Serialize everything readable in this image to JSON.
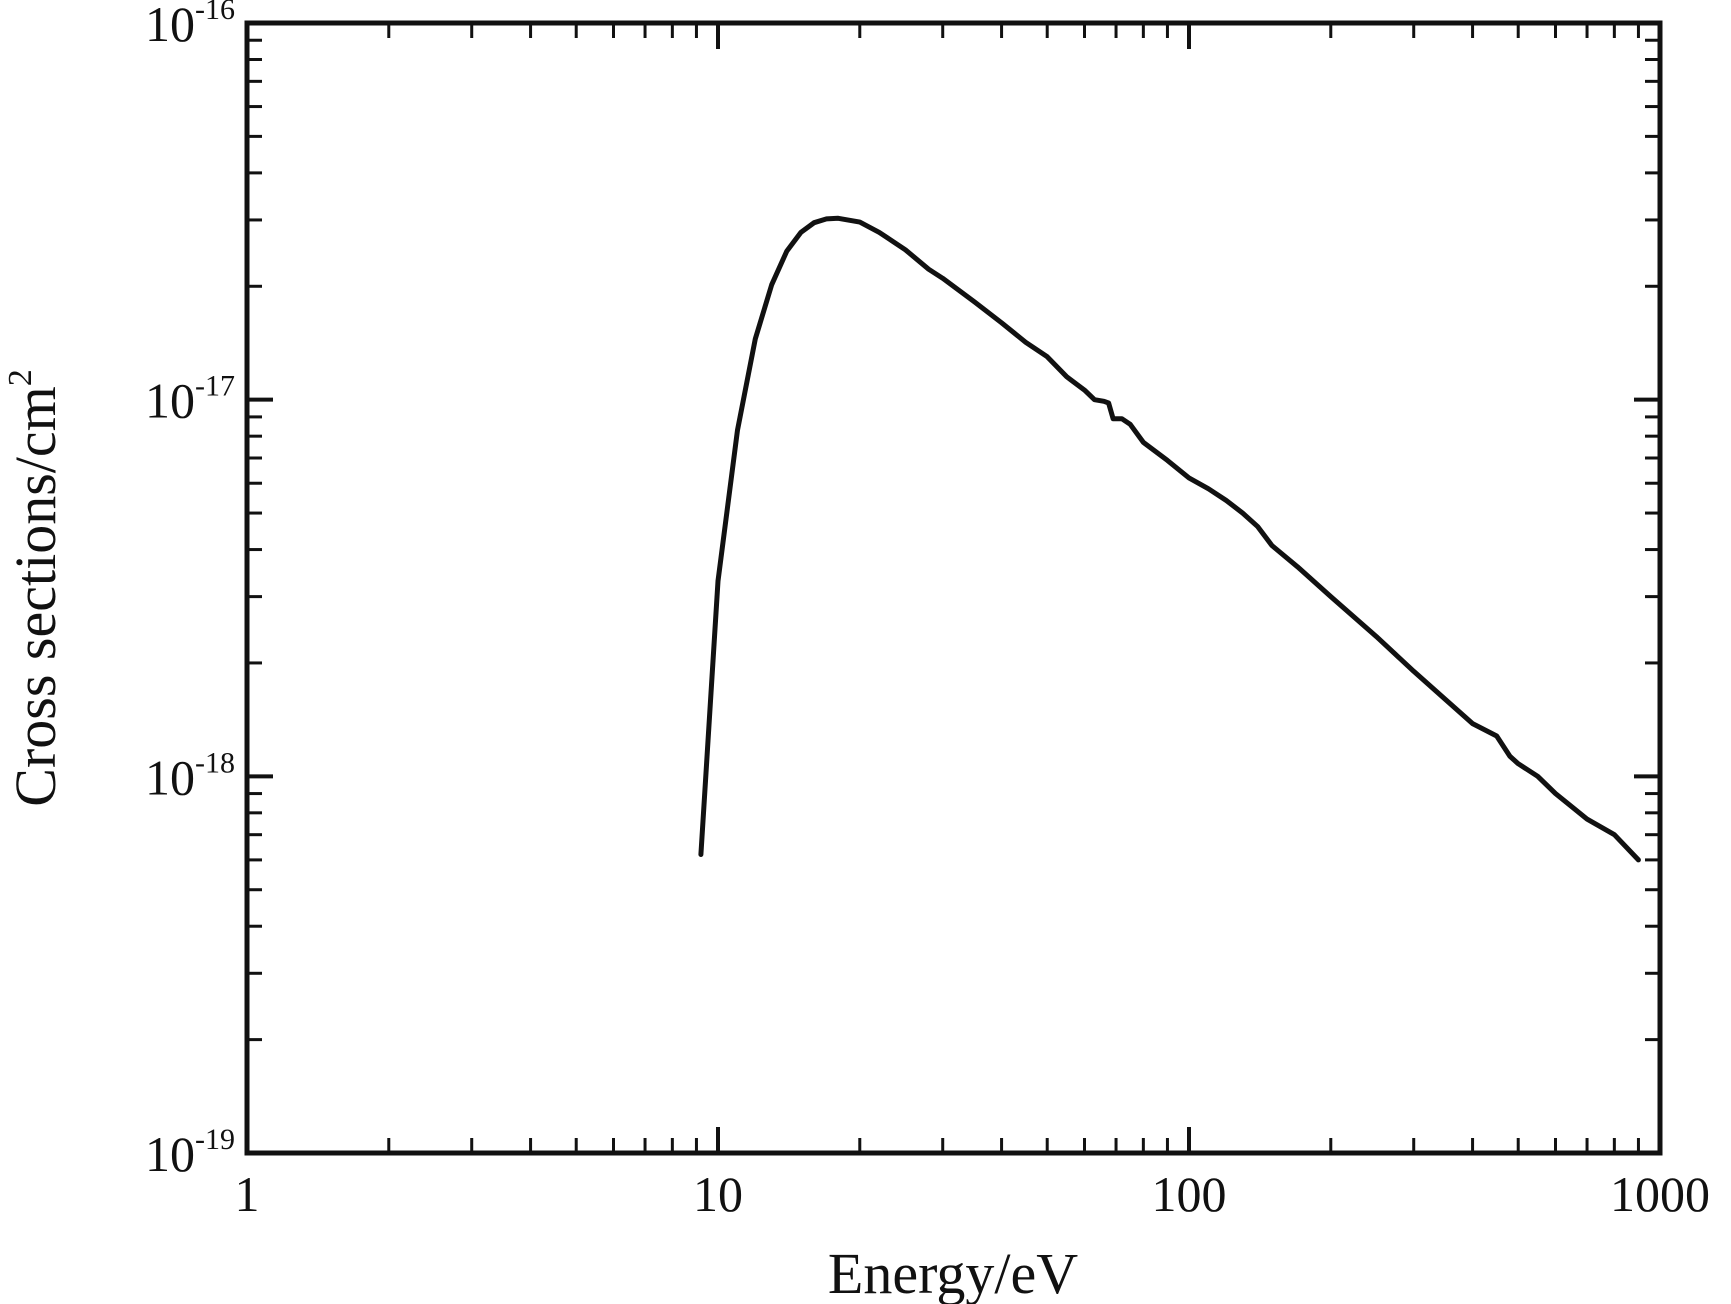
{
  "chart_data": {
    "type": "line",
    "title": "",
    "xlabel": "Energy/eV",
    "ylabel": {
      "text": "Cross sections/cm",
      "superscript": "2"
    },
    "x_scale": "log",
    "y_scale": "log",
    "xlim": [
      1,
      1000
    ],
    "ylim": [
      1e-19,
      1e-16
    ],
    "x_ticks": [
      {
        "value": 1,
        "label": "1"
      },
      {
        "value": 10,
        "label": "10"
      },
      {
        "value": 100,
        "label": "100"
      },
      {
        "value": 1000,
        "label": "1000"
      }
    ],
    "y_ticks": [
      {
        "value": 1e-19,
        "base": "10",
        "exponent": "-19"
      },
      {
        "value": 1e-18,
        "base": "10",
        "exponent": "-18"
      },
      {
        "value": 1e-17,
        "base": "10",
        "exponent": "-17"
      },
      {
        "value": 1e-16,
        "base": "10",
        "exponent": "-16"
      }
    ],
    "grid": false,
    "line_color": "#111111",
    "series": [
      {
        "x": [
          9.2,
          10.0,
          11.0,
          12.0,
          13.0,
          14.0,
          15.0,
          16.0,
          17.0,
          18.0,
          20.0,
          22.0,
          25.0,
          28.0,
          30.0,
          35.0,
          40.0,
          45.0,
          50.0,
          55.0,
          60.0,
          63.0,
          66.0,
          67.5,
          69.0,
          72.0,
          75.0,
          80.0,
          90.0,
          100.0,
          110.0,
          120.0,
          130.0,
          140.0,
          150.0,
          170.0,
          200.0,
          250.0,
          300.0,
          350.0,
          400.0,
          450.0,
          480.0,
          500.0,
          550.0,
          600.0,
          650.0,
          700.0,
          800.0,
          900.0
        ],
        "y": [
          6.2e-19,
          3.3e-18,
          8.3e-18,
          1.45e-17,
          2.02e-17,
          2.48e-17,
          2.78e-17,
          2.95e-17,
          3.02e-17,
          3.03e-17,
          2.96e-17,
          2.78e-17,
          2.5e-17,
          2.22e-17,
          2.1e-17,
          1.82e-17,
          1.6e-17,
          1.42e-17,
          1.3e-17,
          1.15e-17,
          1.06e-17,
          1e-17,
          9.9e-18,
          9.8e-18,
          8.9e-18,
          8.9e-18,
          8.6e-18,
          7.7e-18,
          6.9e-18,
          6.2e-18,
          5.8e-18,
          5.4e-18,
          5e-18,
          4.6e-18,
          4.1e-18,
          3.6e-18,
          3e-18,
          2.35e-18,
          1.9e-18,
          1.6e-18,
          1.38e-18,
          1.28e-18,
          1.13e-18,
          1.08e-18,
          1e-18,
          9e-19,
          8.3e-19,
          7.7e-19,
          7e-19,
          6e-19
        ]
      }
    ]
  }
}
